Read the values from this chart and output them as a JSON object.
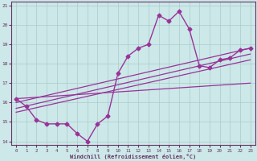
{
  "xlabel": "Windchill (Refroidissement éolien,°C)",
  "bg_color": "#cce8e8",
  "line_color": "#993399",
  "grid_color": "#aacccc",
  "spine_color": "#663366",
  "tick_color": "#663366",
  "xlim": [
    -0.5,
    23.5
  ],
  "ylim": [
    13.8,
    21.2
  ],
  "yticks": [
    14,
    15,
    16,
    17,
    18,
    19,
    20,
    21
  ],
  "xticks": [
    0,
    1,
    2,
    3,
    4,
    5,
    6,
    7,
    8,
    9,
    10,
    11,
    12,
    13,
    14,
    15,
    16,
    17,
    18,
    19,
    20,
    21,
    22,
    23
  ],
  "series": [
    {
      "x": [
        0,
        1,
        2,
        3,
        4,
        5,
        6,
        7,
        8,
        9,
        10,
        11,
        12,
        13,
        14,
        15,
        16,
        17,
        18,
        19,
        20,
        21,
        22,
        23
      ],
      "y": [
        16.2,
        15.8,
        15.1,
        14.9,
        14.9,
        14.9,
        14.4,
        14.0,
        14.9,
        15.3,
        17.5,
        18.4,
        18.8,
        19.0,
        20.5,
        20.2,
        20.7,
        19.8,
        17.9,
        17.8,
        18.2,
        18.3,
        18.7,
        18.8
      ],
      "marker": "D",
      "markersize": 2.5,
      "linewidth": 1.0,
      "zorder": 3
    },
    {
      "x": [
        0,
        23
      ],
      "y": [
        16.0,
        18.8
      ],
      "marker": null,
      "markersize": 0,
      "linewidth": 0.9,
      "zorder": 2
    },
    {
      "x": [
        0,
        23
      ],
      "y": [
        15.7,
        18.5
      ],
      "marker": null,
      "markersize": 0,
      "linewidth": 0.9,
      "zorder": 2
    },
    {
      "x": [
        0,
        23
      ],
      "y": [
        15.5,
        18.2
      ],
      "marker": null,
      "markersize": 0,
      "linewidth": 0.9,
      "zorder": 2
    },
    {
      "x": [
        0,
        23
      ],
      "y": [
        16.2,
        17.0
      ],
      "marker": null,
      "markersize": 0,
      "linewidth": 0.9,
      "zorder": 2
    }
  ]
}
